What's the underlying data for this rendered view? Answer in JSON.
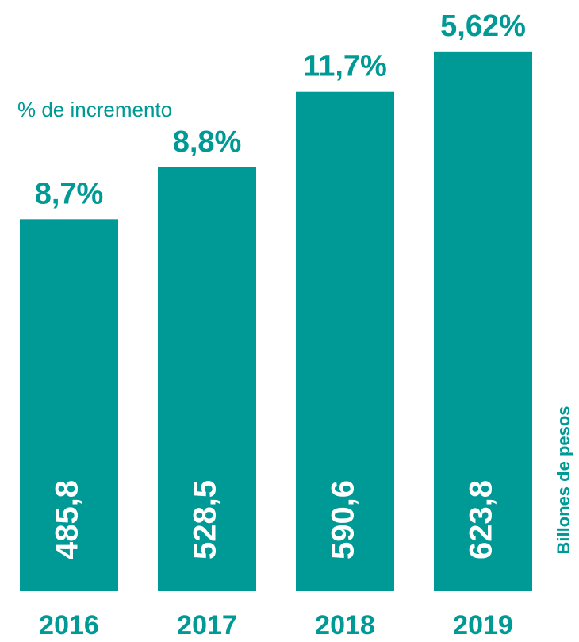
{
  "chart_data": {
    "type": "bar",
    "categories": [
      "2016",
      "2017",
      "2018",
      "2019"
    ],
    "values": [
      485.8,
      528.5,
      590.6,
      623.8
    ],
    "value_labels": [
      "485,8",
      "528,5",
      "590,6",
      "623,8"
    ],
    "annotations": [
      "8,7%",
      "8,8%",
      "11,7%",
      "5,62%"
    ],
    "annotation_title": "% de incremento",
    "y_label": "Billones de pesos",
    "color": "#009a96",
    "ylim": [
      180,
      640
    ]
  }
}
